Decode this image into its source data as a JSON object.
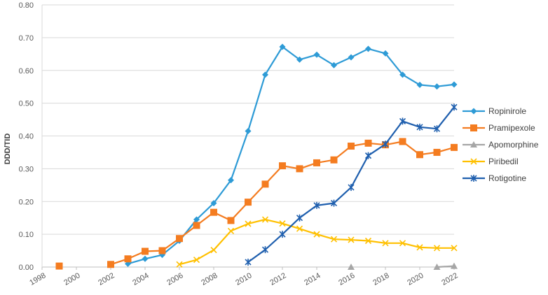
{
  "chart_data": {
    "type": "line",
    "title": "",
    "xlabel": "",
    "ylabel": "DDD/TID",
    "xlim": [
      1998,
      2022
    ],
    "ylim": [
      0,
      0.8
    ],
    "x_ticks": [
      "1998",
      "2000",
      "2002",
      "2004",
      "2006",
      "2008",
      "2010",
      "2012",
      "2014",
      "2016",
      "2018",
      "2020",
      "2022"
    ],
    "y_ticks": [
      "0.00",
      "0.10",
      "0.20",
      "0.30",
      "0.40",
      "0.50",
      "0.60",
      "0.70",
      "0.80"
    ],
    "grid": "horizontal",
    "legend_position": "right",
    "series": [
      {
        "name": "Ropinirole",
        "color": "#2E9BD6",
        "marker": "diamond",
        "points": [
          [
            2003,
            0.01
          ],
          [
            2004,
            0.025
          ],
          [
            2005,
            0.037
          ],
          [
            2006,
            0.08
          ],
          [
            2007,
            0.145
          ],
          [
            2008,
            0.195
          ],
          [
            2009,
            0.265
          ],
          [
            2010,
            0.415
          ],
          [
            2011,
            0.587
          ],
          [
            2012,
            0.672
          ],
          [
            2013,
            0.633
          ],
          [
            2014,
            0.648
          ],
          [
            2015,
            0.616
          ],
          [
            2016,
            0.64
          ],
          [
            2017,
            0.666
          ],
          [
            2018,
            0.652
          ],
          [
            2019,
            0.587
          ],
          [
            2020,
            0.556
          ],
          [
            2021,
            0.551
          ],
          [
            2022,
            0.557
          ]
        ]
      },
      {
        "name": "Pramipexole",
        "color": "#F47C20",
        "marker": "square",
        "points": [
          [
            1999,
            0.003
          ],
          [
            2002,
            0.008
          ],
          [
            2003,
            0.025
          ],
          [
            2004,
            0.048
          ],
          [
            2005,
            0.05
          ],
          [
            2006,
            0.087
          ],
          [
            2007,
            0.127
          ],
          [
            2008,
            0.167
          ],
          [
            2009,
            0.142
          ],
          [
            2010,
            0.198
          ],
          [
            2011,
            0.253
          ],
          [
            2012,
            0.309
          ],
          [
            2013,
            0.3
          ],
          [
            2014,
            0.318
          ],
          [
            2015,
            0.327
          ],
          [
            2016,
            0.369
          ],
          [
            2017,
            0.378
          ],
          [
            2018,
            0.373
          ],
          [
            2019,
            0.383
          ],
          [
            2020,
            0.343
          ],
          [
            2021,
            0.35
          ],
          [
            2022,
            0.365
          ]
        ]
      },
      {
        "name": "Apomorphine",
        "color": "#A6A6A6",
        "marker": "triangle",
        "points": [
          [
            2016,
            0.0
          ],
          [
            2021,
            0.0
          ],
          [
            2022,
            0.003
          ]
        ]
      },
      {
        "name": "Piribedil",
        "color": "#FFC000",
        "marker": "x",
        "points": [
          [
            2006,
            0.008
          ],
          [
            2007,
            0.022
          ],
          [
            2008,
            0.052
          ],
          [
            2009,
            0.11
          ],
          [
            2010,
            0.132
          ],
          [
            2011,
            0.145
          ],
          [
            2012,
            0.133
          ],
          [
            2013,
            0.117
          ],
          [
            2014,
            0.1
          ],
          [
            2015,
            0.085
          ],
          [
            2016,
            0.083
          ],
          [
            2017,
            0.08
          ],
          [
            2018,
            0.073
          ],
          [
            2019,
            0.073
          ],
          [
            2020,
            0.06
          ],
          [
            2021,
            0.058
          ],
          [
            2022,
            0.058
          ]
        ]
      },
      {
        "name": "Rotigotine",
        "color": "#1F5FAE",
        "marker": "star",
        "points": [
          [
            2010,
            0.015
          ],
          [
            2011,
            0.053
          ],
          [
            2012,
            0.1
          ],
          [
            2013,
            0.15
          ],
          [
            2014,
            0.188
          ],
          [
            2015,
            0.195
          ],
          [
            2016,
            0.243
          ],
          [
            2017,
            0.34
          ],
          [
            2018,
            0.375
          ],
          [
            2019,
            0.445
          ],
          [
            2020,
            0.427
          ],
          [
            2021,
            0.422
          ],
          [
            2022,
            0.488
          ]
        ]
      }
    ]
  }
}
